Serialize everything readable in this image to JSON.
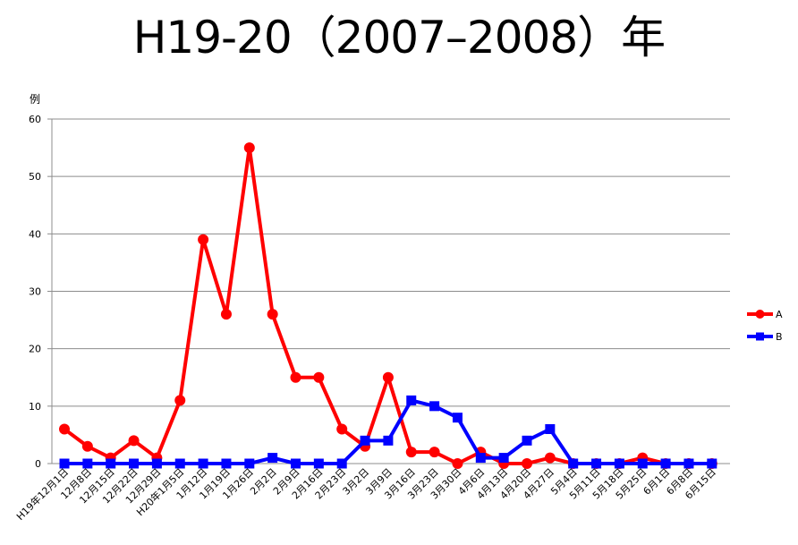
{
  "chart_data": {
    "type": "line",
    "title": "H19-20（2007–2008）年",
    "ylabel": "例",
    "xlabel": "",
    "ylim": [
      0,
      60
    ],
    "yticks": [
      0,
      10,
      20,
      30,
      40,
      50,
      60
    ],
    "grid": true,
    "legend_position": "right",
    "categories": [
      "H19年12月1日",
      "12月8日",
      "12月15日",
      "12月22日",
      "12月29日",
      "H20年1月5日",
      "1月12日",
      "1月19日",
      "1月26日",
      "2月2日",
      "2月9日",
      "2月16日",
      "2月23日",
      "3月2日",
      "3月9日",
      "3月16日",
      "3月23日",
      "3月30日",
      "4月6日",
      "4月13日",
      "4月20日",
      "4月27日",
      "5月4日",
      "5月11日",
      "5月18日",
      "5月25日",
      "6月1日",
      "6月8日",
      "6月15日"
    ],
    "series": [
      {
        "name": "A",
        "color": "#ff0000",
        "marker": "circle",
        "values": [
          6,
          3,
          1,
          4,
          1,
          11,
          39,
          26,
          55,
          26,
          15,
          15,
          6,
          3,
          15,
          2,
          2,
          0,
          2,
          0,
          0,
          1,
          0,
          0,
          0,
          1,
          0,
          0,
          0
        ]
      },
      {
        "name": "B",
        "color": "#0000ff",
        "marker": "square",
        "values": [
          0,
          0,
          0,
          0,
          0,
          0,
          0,
          0,
          0,
          1,
          0,
          0,
          0,
          4,
          4,
          11,
          10,
          8,
          1,
          1,
          4,
          6,
          0,
          0,
          0,
          0,
          0,
          0,
          0
        ]
      }
    ]
  }
}
